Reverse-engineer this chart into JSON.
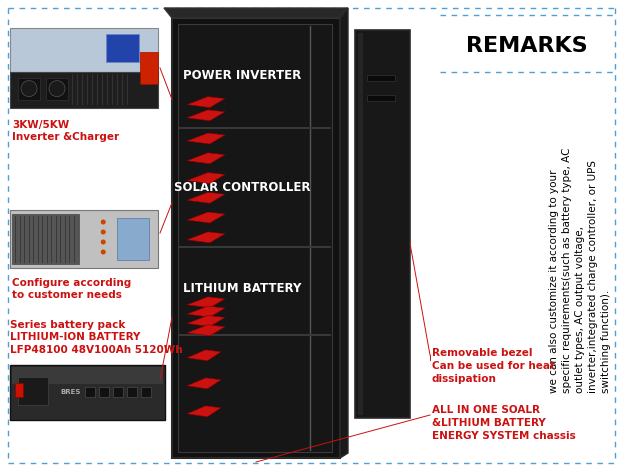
{
  "title": "REMARKS",
  "remarks_text": "we can also customize it according to your\nspecific requirements(such as battery type, AC\noutlet types, AC output voltage,\ninverter,integrated charge controller, or UPS\nswitching function).",
  "left_label_1": "3KW/5KW\nInverter &Charger",
  "left_label_2": "Configure according\nto customer needs",
  "left_label_3": "Series battery pack\nLITHIUM-ION BATTERY\nLFP48100 48V100Ah 5120Wh",
  "cab_label_1": "POWER INVERTER",
  "cab_label_2": "SOLAR CONTROLLER",
  "cab_label_3": "LITHIUM BATTERY",
  "bot_label_1": "Removable bezel\nCan be used for heat\ndissipation",
  "bot_label_2": "ALL IN ONE SOALR\n&LITHIUM BATTERY\nENERGY SYSTEM chassis",
  "bg_color": "#ffffff",
  "border_color": "#4d9fd6",
  "red_color": "#cc1111",
  "white": "#ffffff",
  "black": "#000000",
  "cab_dark": "#111111",
  "cab_mid": "#1e1e1e",
  "cab_light": "#2a2a2a",
  "divider_color": "#3a3a3a"
}
